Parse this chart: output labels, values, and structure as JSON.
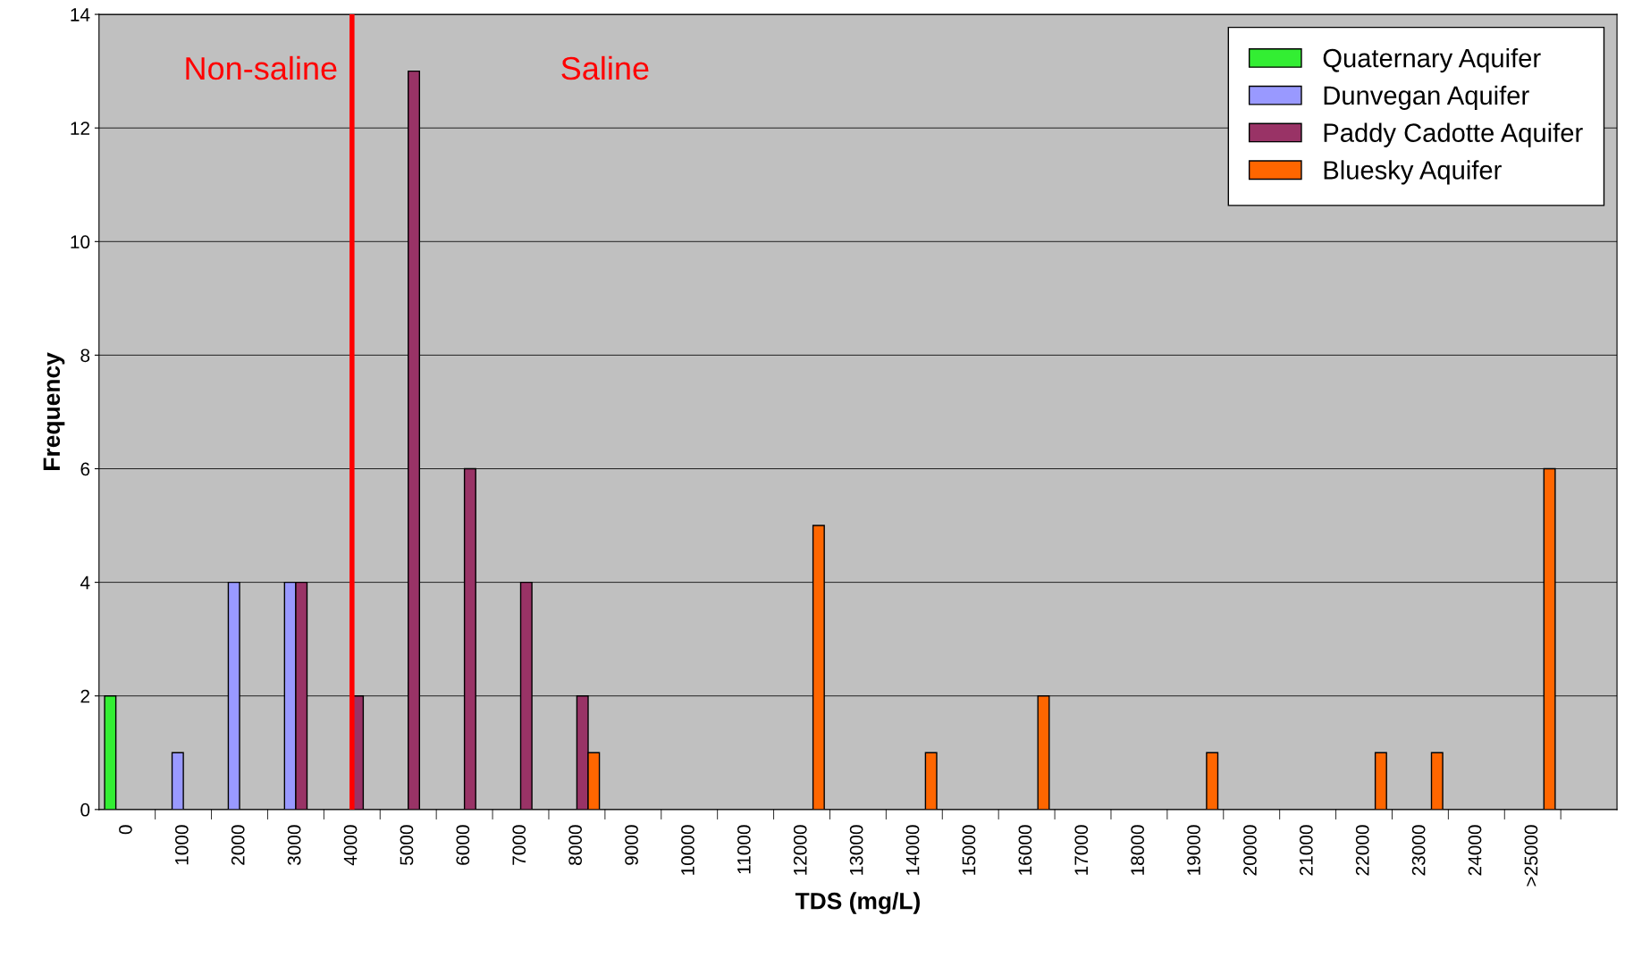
{
  "chart_data": {
    "type": "bar",
    "xlabel": "TDS (mg/L)",
    "ylabel": "Frequency",
    "categories": [
      "0",
      "1000",
      "2000",
      "3000",
      "4000",
      "5000",
      "6000",
      "7000",
      "8000",
      "9000",
      "10000",
      "11000",
      "12000",
      "13000",
      "14000",
      "15000",
      "16000",
      "17000",
      "18000",
      "19000",
      "20000",
      "21000",
      "22000",
      "23000",
      "24000",
      ">25000",
      null
    ],
    "series": [
      {
        "name": "Quaternary Aquifer",
        "color": "#33ee33",
        "values": [
          2,
          null,
          null,
          null,
          null,
          null,
          null,
          null,
          null,
          null,
          null,
          null,
          null,
          null,
          null,
          null,
          null,
          null,
          null,
          null,
          null,
          null,
          null,
          null,
          null,
          null,
          null
        ]
      },
      {
        "name": "Dunvegan Aquifer",
        "color": "#9999ff",
        "values": [
          null,
          1,
          4,
          4,
          null,
          null,
          null,
          null,
          null,
          null,
          null,
          null,
          null,
          null,
          null,
          null,
          null,
          null,
          null,
          null,
          null,
          null,
          null,
          null,
          null,
          null,
          null
        ]
      },
      {
        "name": "Paddy Cadotte Aquifer",
        "color": "#993366",
        "values": [
          null,
          null,
          null,
          4,
          2,
          13,
          6,
          4,
          2,
          null,
          null,
          null,
          null,
          null,
          null,
          null,
          null,
          null,
          null,
          null,
          null,
          null,
          null,
          null,
          null,
          null,
          null
        ]
      },
      {
        "name": "Bluesky Aquifer",
        "color": "#ff6600",
        "values": [
          null,
          null,
          null,
          null,
          null,
          null,
          null,
          null,
          1,
          null,
          null,
          null,
          5,
          null,
          1,
          null,
          2,
          null,
          null,
          1,
          null,
          null,
          1,
          1,
          null,
          6,
          null
        ]
      }
    ],
    "ylim": [
      0,
      14
    ],
    "yticks": [
      0,
      2,
      4,
      6,
      8,
      10,
      12,
      14
    ],
    "grid": "y",
    "legend": "top right",
    "ref_lines": [
      {
        "axis": "x",
        "value": "4000",
        "color": "#ff0000"
      }
    ],
    "annotations": [
      "Non-saline",
      "Saline"
    ]
  }
}
